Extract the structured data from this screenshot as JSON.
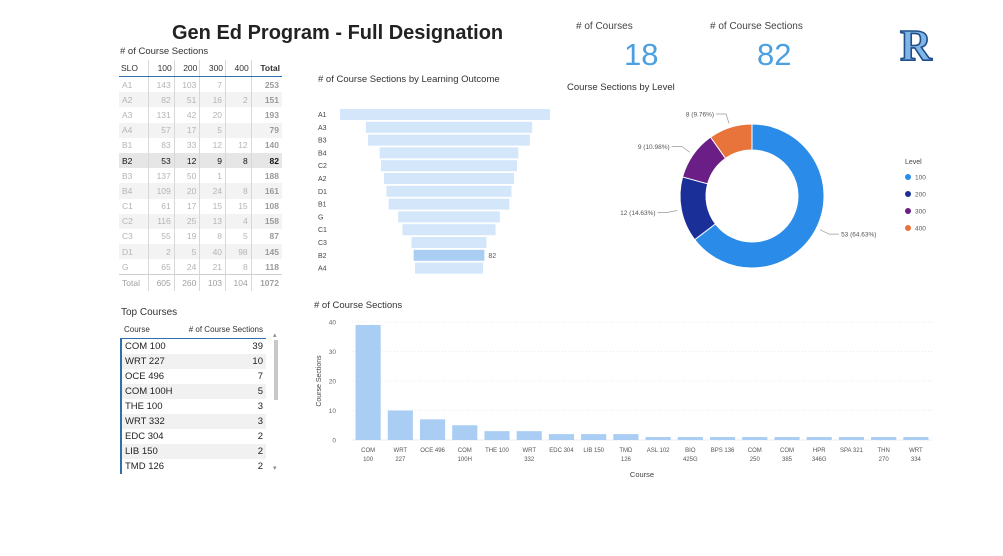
{
  "title": "Gen Ed Program - Full Designation",
  "kpis": {
    "courses_label": "# of Courses",
    "courses_value": "18",
    "sections_label": "# of Course Sections",
    "sections_value": "82"
  },
  "logo_text": "R",
  "matrix": {
    "title": "# of Course Sections",
    "headers": [
      "SLO",
      "100",
      "200",
      "300",
      "400",
      "Total"
    ],
    "rows": [
      [
        "A1",
        "143",
        "103",
        "7",
        "",
        "253"
      ],
      [
        "A2",
        "82",
        "51",
        "16",
        "2",
        "151"
      ],
      [
        "A3",
        "131",
        "42",
        "20",
        "",
        "193"
      ],
      [
        "A4",
        "57",
        "17",
        "5",
        "",
        "79"
      ],
      [
        "B1",
        "83",
        "33",
        "12",
        "12",
        "140"
      ],
      [
        "B2",
        "53",
        "12",
        "9",
        "8",
        "82"
      ],
      [
        "B3",
        "137",
        "50",
        "1",
        "",
        "188"
      ],
      [
        "B4",
        "109",
        "20",
        "24",
        "8",
        "161"
      ],
      [
        "C1",
        "61",
        "17",
        "15",
        "15",
        "108"
      ],
      [
        "C2",
        "116",
        "25",
        "13",
        "4",
        "158"
      ],
      [
        "C3",
        "55",
        "19",
        "8",
        "5",
        "87"
      ],
      [
        "D1",
        "2",
        "5",
        "40",
        "98",
        "145"
      ],
      [
        "G",
        "65",
        "24",
        "21",
        "8",
        "118"
      ]
    ],
    "total_row": [
      "Total",
      "605",
      "260",
      "103",
      "104",
      "1072"
    ]
  },
  "top_courses": {
    "title": "Top Courses",
    "headers": [
      "Course",
      "# of Course Sections"
    ],
    "rows": [
      [
        "COM 100",
        "39"
      ],
      [
        "WRT 227",
        "10"
      ],
      [
        "OCE 496",
        "7"
      ],
      [
        "COM 100H",
        "5"
      ],
      [
        "THE 100",
        "3"
      ],
      [
        "WRT 332",
        "3"
      ],
      [
        "EDC 304",
        "2"
      ],
      [
        "LIB 150",
        "2"
      ],
      [
        "TMD 126",
        "2"
      ]
    ]
  },
  "chart_data": [
    {
      "type": "bar",
      "orientation": "funnel",
      "title": "# of Course Sections by Learning Outcome",
      "categories": [
        "A1",
        "A3",
        "B3",
        "B4",
        "C2",
        "A2",
        "D1",
        "B1",
        "G",
        "C1",
        "C3",
        "B2",
        "A4"
      ],
      "values": [
        253,
        193,
        188,
        161,
        158,
        151,
        145,
        140,
        118,
        108,
        87,
        82,
        79
      ],
      "highlight": "B2",
      "data_labels": {
        "B2": "82"
      },
      "colors": {
        "bar": "#d3e6fa",
        "highlight": "#a9cdf3"
      }
    },
    {
      "type": "pie",
      "title": "Course Sections by Level",
      "legend_title": "Level",
      "legend_position": "right",
      "categories": [
        "100",
        "200",
        "300",
        "400"
      ],
      "values": [
        53,
        12,
        9,
        8
      ],
      "labels": [
        "53 (64.63%)",
        "12 (14.63%)",
        "9 (10.98%)",
        "8 (9.76%)"
      ],
      "colors": [
        "#2b8be8",
        "#1a2f98",
        "#6b1f86",
        "#e8743b"
      ]
    },
    {
      "type": "bar",
      "title": "# of Course Sections",
      "xlabel": "Course",
      "ylabel": "Course Sections",
      "ylim": [
        0,
        40
      ],
      "yticks": [
        0,
        10,
        20,
        30,
        40
      ],
      "categories": [
        [
          "COM",
          "100"
        ],
        [
          "WRT",
          "227"
        ],
        [
          "OCE 496"
        ],
        [
          "COM",
          "100H"
        ],
        [
          "THE 100"
        ],
        [
          "WRT",
          "332"
        ],
        [
          "EDC 304"
        ],
        [
          "LIB 150"
        ],
        [
          "TMD",
          "126"
        ],
        [
          "ASL 102"
        ],
        [
          "BIO",
          "425G"
        ],
        [
          "BPS 136"
        ],
        [
          "COM",
          "250"
        ],
        [
          "COM",
          "385"
        ],
        [
          "HPR",
          "346G"
        ],
        [
          "SPA 321"
        ],
        [
          "THN",
          "270"
        ],
        [
          "WRT",
          "334"
        ]
      ],
      "values": [
        39,
        10,
        7,
        5,
        3,
        3,
        2,
        2,
        2,
        1,
        1,
        1,
        1,
        1,
        1,
        1,
        1,
        1
      ],
      "colors": {
        "bar": "#a9cdf3"
      }
    }
  ]
}
